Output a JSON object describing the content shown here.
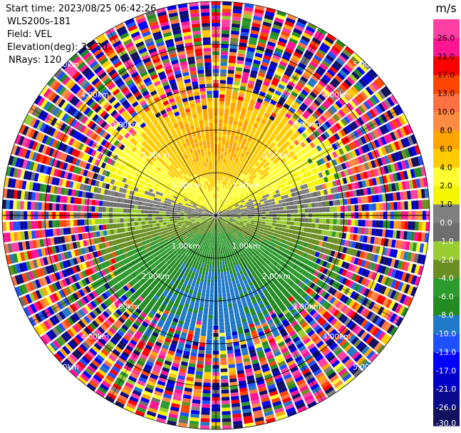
{
  "header": {
    "start_time": "Start time: 2023/08/25 06:42:26",
    "instrument": "WLS200s-181",
    "field": "Field: VEL",
    "elevation": "Elevation(deg): 35.30",
    "nrays": "NRays: 120"
  },
  "chart_data": {
    "type": "heatmap",
    "projection": "polar-ppi",
    "field": "VEL",
    "units": "m/s",
    "nrays": 120,
    "elevation_deg": 35.3,
    "range_ring_labels": [
      "1.00km",
      "2.00km",
      "3.00km",
      "4.00km",
      "5.00km"
    ],
    "range_rings_km": [
      1,
      2,
      3,
      4,
      5
    ],
    "spokes_deg": [
      0,
      30,
      60,
      90,
      120,
      150,
      180,
      210,
      240,
      270,
      300,
      330
    ],
    "approx_wind_pattern": "approaching (negative) toward south, receding (positive) toward north, zero line roughly east-west",
    "valid_max_range_km": 3.0,
    "colorbar": {
      "label": "m/s",
      "vmin": -30.0,
      "vmax": 30.0,
      "boundaries": [
        -30.0,
        -26.0,
        -21.0,
        -17.0,
        -13.0,
        -10.0,
        -8.0,
        -6.0,
        -4.0,
        -2.0,
        -1.0,
        0.0,
        1.0,
        2.0,
        4.0,
        6.0,
        8.0,
        10.0,
        13.0,
        17.0,
        21.0,
        26.0,
        30.0
      ],
      "tick_labels": [
        "-30.0",
        "-26.0",
        "-21.0",
        "-17.0",
        "-13.0",
        "-10.0",
        "-8.0",
        "-6.0",
        "-4.0",
        "-2.0",
        "-1.0",
        "0.0",
        "1.0",
        "2.0",
        "4.0",
        "6.0",
        "8.0",
        "10.0",
        "13.0",
        "17.0",
        "21.0",
        "26.0"
      ],
      "colors": [
        "#12125c",
        "#0a0a8c",
        "#0000c8",
        "#0000ff",
        "#1e50ff",
        "#1f78c8",
        "#228b22",
        "#2d9a2d",
        "#6b8e23",
        "#9acd32",
        "#6e6e6e",
        "#808080",
        "#f5f500",
        "#ffff33",
        "#ffcc00",
        "#ffa500",
        "#ff8c42",
        "#ff7043",
        "#ff4500",
        "#ff0000",
        "#ff1493",
        "#ff3fa4"
      ]
    }
  }
}
